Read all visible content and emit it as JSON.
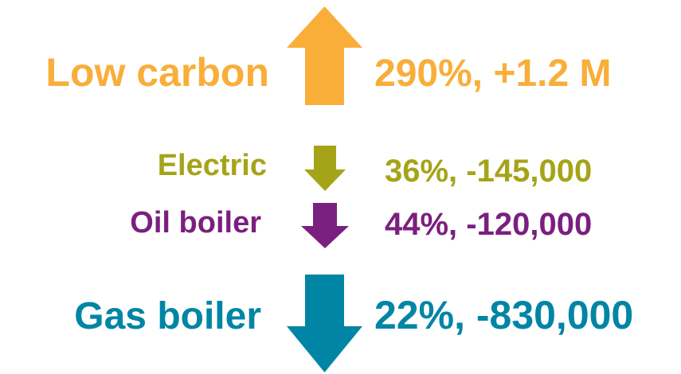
{
  "items": [
    {
      "label": "Low carbon",
      "change": "290%, +1.2 M",
      "color": "#f9ae3a",
      "direction": "up"
    },
    {
      "label": "Electric",
      "change": "36%, -145,000",
      "color": "#a5a418",
      "direction": "down"
    },
    {
      "label": "Oil boiler",
      "change": "44%, -120,000",
      "color": "#7b1f7f",
      "direction": "down"
    },
    {
      "label": "Gas boiler",
      "change": "22%, -830,000",
      "color": "#0085a5",
      "direction": "down"
    }
  ]
}
